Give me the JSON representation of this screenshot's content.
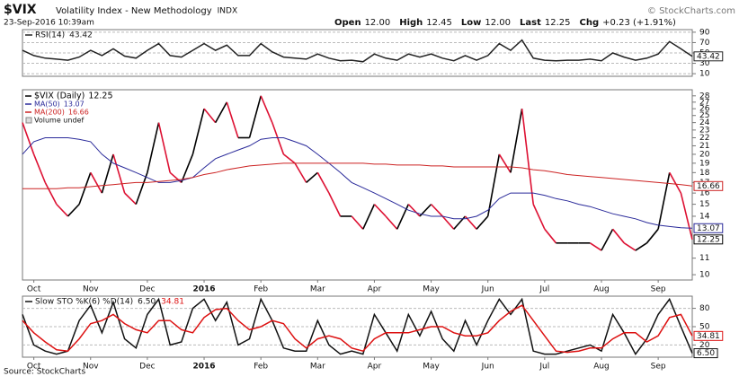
{
  "header": {
    "symbol": "$VIX",
    "name": "Volatility Index - New Methodology",
    "exchange": "INDX",
    "timestamp": "23-Sep-2016 10:39am",
    "quote": [
      {
        "label": "Open",
        "value": "12.00"
      },
      {
        "label": "High",
        "value": "12.45"
      },
      {
        "label": "Low",
        "value": "12.00"
      },
      {
        "label": "Last",
        "value": "12.25"
      },
      {
        "label": "Chg",
        "value": "+0.23 (+1.91%)"
      }
    ],
    "copyright": "© StockCharts.com"
  },
  "source": "Source: StockCharts",
  "chart_data": [
    {
      "type": "line",
      "title": "RSI(14)",
      "legend_style": "inline",
      "ylim": [
        5,
        95
      ],
      "yticks": [
        10,
        30,
        50,
        70,
        90
      ],
      "grid": true,
      "series": [
        {
          "color": "#222222",
          "end_label": true,
          "values": [
            55,
            45,
            40,
            38,
            36,
            42,
            55,
            45,
            58,
            44,
            40,
            55,
            68,
            45,
            42,
            55,
            68,
            55,
            65,
            45,
            45,
            68,
            52,
            42,
            40,
            38,
            48,
            40,
            35,
            36,
            33,
            48,
            40,
            36,
            48,
            42,
            48,
            40,
            35,
            45,
            36,
            45,
            68,
            55,
            75,
            40,
            36,
            35,
            36,
            36,
            38,
            35,
            50,
            42,
            36,
            40,
            48,
            72,
            58,
            43.42
          ]
        }
      ]
    },
    {
      "type": "line",
      "legend_style": "stacked",
      "log_scale": true,
      "ylim": [
        9.7,
        29
      ],
      "yticks": [
        10,
        11,
        14,
        15,
        16,
        17,
        18,
        19,
        20,
        21,
        22,
        23,
        24,
        25,
        26,
        27,
        28
      ],
      "grid": false,
      "legend_extra": "Volume undef",
      "categories": [
        null,
        "Oct",
        null,
        null,
        null,
        null,
        "Nov",
        null,
        null,
        null,
        null,
        "Dec",
        null,
        null,
        null,
        null,
        "2016",
        null,
        null,
        null,
        null,
        "Feb",
        null,
        null,
        null,
        null,
        "Mar",
        null,
        null,
        null,
        null,
        "Apr",
        null,
        null,
        null,
        null,
        "May",
        null,
        null,
        null,
        null,
        "Jun",
        null,
        null,
        null,
        null,
        "Jul",
        null,
        null,
        null,
        null,
        "Aug",
        null,
        null,
        null,
        null,
        "Sep",
        null,
        null,
        null
      ],
      "series": [
        {
          "name": "$VIX (Daily)",
          "color": "#000000",
          "up_color": "#000000",
          "down_color": "#dd1133",
          "end_label": true,
          "values": [
            24,
            20,
            17,
            15,
            14,
            15,
            18,
            16,
            20,
            16,
            15,
            18,
            24,
            18,
            17,
            20,
            26,
            24,
            27,
            22,
            22,
            28,
            24,
            20,
            19,
            17,
            18,
            16,
            14,
            14,
            13,
            15,
            14,
            13,
            15,
            14,
            15,
            14,
            13,
            14,
            13,
            14,
            20,
            18,
            26,
            15,
            13,
            12,
            12,
            12,
            12,
            11.5,
            13,
            12,
            11.5,
            12,
            13,
            18,
            16,
            12.25
          ]
        },
        {
          "name": "MA(50)",
          "color": "#2a2a9a",
          "end_label": true,
          "values": [
            20,
            21.5,
            22,
            22,
            22,
            21.8,
            21.5,
            20,
            19,
            18.5,
            18,
            17.5,
            17,
            17,
            17.2,
            17.5,
            18.5,
            19.5,
            20,
            20.5,
            21,
            21.8,
            22,
            22,
            21.5,
            21,
            20,
            19,
            18,
            17,
            16.5,
            16,
            15.5,
            15,
            14.5,
            14.2,
            14,
            14,
            13.8,
            13.8,
            14,
            14.5,
            15.5,
            16,
            16,
            16,
            15.8,
            15.5,
            15.3,
            15,
            14.8,
            14.5,
            14.2,
            14,
            13.8,
            13.5,
            13.3,
            13.2,
            13.1,
            13.07
          ]
        },
        {
          "name": "MA(200)",
          "color": "#cc2222",
          "end_label": true,
          "values": [
            16.4,
            16.4,
            16.4,
            16.4,
            16.5,
            16.5,
            16.6,
            16.7,
            16.8,
            16.9,
            17,
            17,
            17.1,
            17.2,
            17.3,
            17.5,
            17.8,
            18,
            18.3,
            18.5,
            18.7,
            18.8,
            18.9,
            19,
            19,
            19,
            19,
            19,
            19,
            19,
            19,
            18.9,
            18.9,
            18.8,
            18.8,
            18.8,
            18.7,
            18.7,
            18.6,
            18.6,
            18.6,
            18.6,
            18.6,
            18.6,
            18.5,
            18.3,
            18.2,
            18,
            17.8,
            17.7,
            17.6,
            17.5,
            17.4,
            17.3,
            17.2,
            17.1,
            17,
            16.9,
            16.8,
            16.66
          ]
        }
      ]
    },
    {
      "type": "line",
      "title": "Slow STO %K(6) %D(14)",
      "legend_style": "inline",
      "ylim": [
        0,
        100
      ],
      "yticks": [
        20,
        50,
        80
      ],
      "grid": true,
      "categories": [
        null,
        "Oct",
        null,
        null,
        null,
        null,
        "Nov",
        null,
        null,
        null,
        null,
        "Dec",
        null,
        null,
        null,
        null,
        "2016",
        null,
        null,
        null,
        null,
        "Feb",
        null,
        null,
        null,
        null,
        "Mar",
        null,
        null,
        null,
        null,
        "Apr",
        null,
        null,
        null,
        null,
        "May",
        null,
        null,
        null,
        null,
        "Jun",
        null,
        null,
        null,
        null,
        "Jul",
        null,
        null,
        null,
        null,
        "Aug",
        null,
        null,
        null,
        null,
        "Sep",
        null,
        null,
        null
      ],
      "series": [
        {
          "color": "#111111",
          "end_label": true,
          "values": [
            70,
            20,
            10,
            5,
            10,
            60,
            85,
            40,
            90,
            30,
            15,
            70,
            95,
            20,
            25,
            80,
            95,
            60,
            90,
            20,
            30,
            95,
            60,
            15,
            10,
            10,
            60,
            20,
            5,
            10,
            5,
            70,
            40,
            10,
            70,
            35,
            75,
            30,
            10,
            60,
            20,
            60,
            95,
            70,
            95,
            10,
            5,
            5,
            10,
            15,
            20,
            10,
            70,
            40,
            5,
            30,
            70,
            95,
            50,
            6.5
          ],
          "value_labels": [
            null,
            null,
            null,
            null,
            null,
            null,
            null,
            null,
            null,
            null,
            null,
            null,
            null,
            null,
            null,
            null,
            null,
            null,
            null,
            null,
            null,
            null,
            null,
            null,
            null,
            null,
            null,
            null,
            null,
            null,
            null,
            null,
            null,
            null,
            null,
            null,
            null,
            null,
            null,
            null,
            null,
            null,
            null,
            null,
            null,
            null,
            null,
            null,
            null,
            null,
            null,
            null,
            null,
            null,
            null,
            null,
            null,
            null,
            null,
            "6.50"
          ]
        },
        {
          "color": "#dd1111",
          "end_label": true,
          "values": [
            60,
            40,
            25,
            12,
            10,
            30,
            55,
            60,
            70,
            55,
            45,
            40,
            60,
            60,
            45,
            40,
            65,
            78,
            80,
            60,
            45,
            50,
            60,
            55,
            30,
            15,
            30,
            35,
            30,
            15,
            10,
            30,
            40,
            40,
            40,
            45,
            50,
            50,
            40,
            35,
            35,
            40,
            60,
            75,
            85,
            60,
            35,
            10,
            8,
            10,
            15,
            15,
            30,
            40,
            40,
            25,
            35,
            65,
            70,
            34.81
          ]
        }
      ]
    }
  ]
}
